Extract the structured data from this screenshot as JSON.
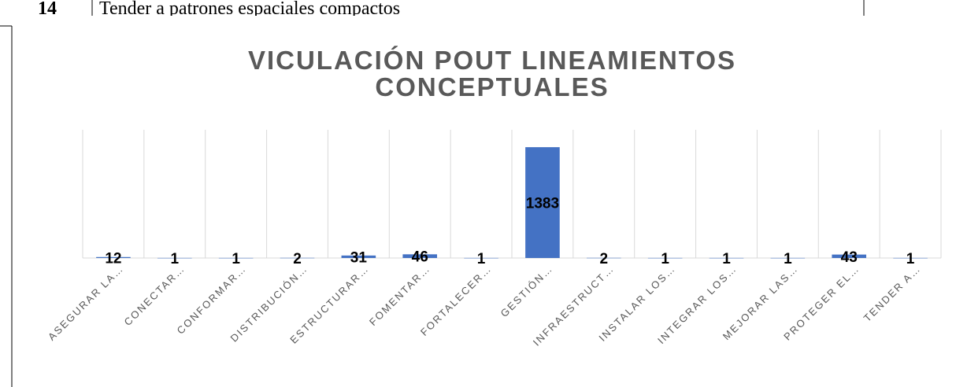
{
  "document": {
    "row_number": "14",
    "row_text": "Tender a patrones espaciales compactos"
  },
  "chart_data": {
    "type": "bar",
    "title": [
      "VICULACIÓN POUT LINEAMIENTOS",
      "CONCEPTUALES"
    ],
    "categories": [
      "ASEGURAR LA…",
      "CONECTAR…",
      "CONFORMAR…",
      "DISTRIBUCIÓN…",
      "ESTRUCTURAR…",
      "FOMENTAR…",
      "FORTALECER…",
      "GESTIÓN…",
      "INFRAESTRUCT…",
      "INSTALAR LOS…",
      "INTEGRAR LOS…",
      "MEJORAR LAS…",
      "PROTEGER EL…",
      "TENDER A…"
    ],
    "values": [
      12,
      1,
      1,
      2,
      31,
      46,
      1,
      1383,
      2,
      1,
      1,
      1,
      43,
      1
    ],
    "color": "#4472c4",
    "ylim": [
      0,
      1600
    ],
    "grid": true
  }
}
